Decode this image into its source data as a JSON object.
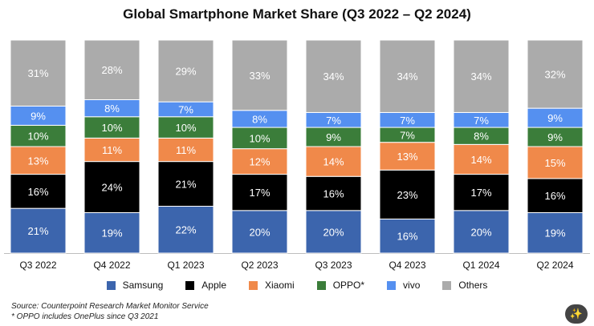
{
  "chart_data": {
    "type": "bar",
    "stacked": true,
    "percent": true,
    "title": "Global Smartphone Market Share (Q3 2022 – Q2 2024)",
    "categories": [
      "Q3 2022",
      "Q4 2022",
      "Q1 2023",
      "Q2 2023",
      "Q3 2023",
      "Q4 2023",
      "Q1 2024",
      "Q2 2024"
    ],
    "series": [
      {
        "name": "Samsung",
        "color": "#3c65ad",
        "values": [
          21,
          19,
          22,
          20,
          20,
          16,
          20,
          19
        ]
      },
      {
        "name": "Apple",
        "color": "#000000",
        "values": [
          16,
          24,
          21,
          17,
          16,
          23,
          17,
          16
        ]
      },
      {
        "name": "Xiaomi",
        "color": "#f0894a",
        "values": [
          13,
          11,
          11,
          12,
          14,
          13,
          14,
          15
        ]
      },
      {
        "name": "OPPO*",
        "color": "#3b7d3a",
        "values": [
          10,
          10,
          10,
          10,
          9,
          7,
          8,
          9
        ]
      },
      {
        "name": "vivo",
        "color": "#5590f0",
        "values": [
          9,
          8,
          7,
          8,
          7,
          7,
          7,
          9
        ]
      },
      {
        "name": "Others",
        "color": "#ababab",
        "values": [
          31,
          28,
          29,
          33,
          34,
          34,
          34,
          32
        ]
      }
    ],
    "label_suffix": "%",
    "xlabel": "",
    "ylabel": "",
    "legend_position": "bottom"
  },
  "source_lines": [
    "Source: Counterpoint Research Market Monitor Service",
    "* OPPO includes OnePlus since Q3 2021"
  ],
  "magic_icon_glyph": "✨"
}
